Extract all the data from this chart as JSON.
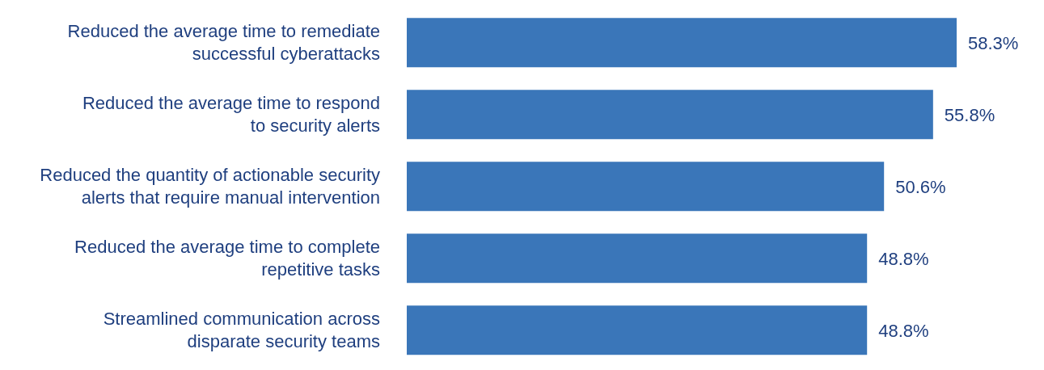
{
  "chart_data": {
    "type": "bar",
    "orientation": "horizontal",
    "categories": [
      "Reduced the average time to remediate\nsuccessful cyberattacks",
      "Reduced the average time to respond\nto security alerts",
      "Reduced the quantity of actionable security\nalerts that require manual intervention",
      "Reduced the average time to complete\nrepetitive tasks",
      "Streamlined communication across\ndisparate security teams"
    ],
    "values": [
      58.3,
      55.8,
      50.6,
      48.8,
      48.8
    ],
    "value_labels": [
      "58.3%",
      "55.8%",
      "50.6%",
      "48.8%",
      "48.8%"
    ],
    "color": "#3a76b9"
  }
}
